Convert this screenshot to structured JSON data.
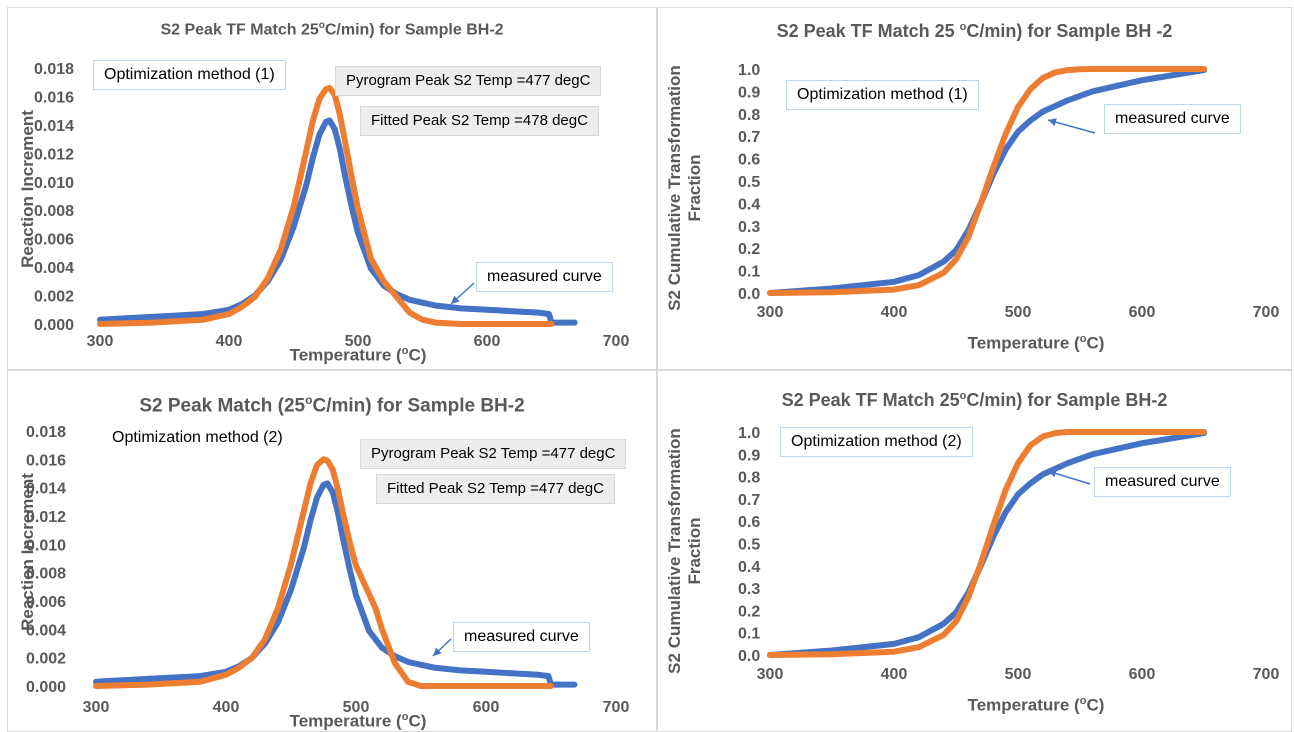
{
  "colors": {
    "measured": "#4472c4",
    "fitted": "#ed7d31",
    "axis_text": "#595959",
    "gridline": "#d9d9d9",
    "callout_border": "#bdd7ee",
    "label_fill": "#ededed"
  },
  "panels": [
    {
      "title_pre": "S2 Peak TF Match 25",
      "title_sup": "o",
      "title_post": "C/min) for Sample BH-2",
      "xlabel_pre": "Temperature (",
      "xlabel_sup": "o",
      "xlabel_post": "C)",
      "ylabel_line1": "Reaction Increment",
      "method": "Optimization method (1)",
      "pyro": "Pyrogram Peak S2 Temp =477 degC",
      "fitted": "Fitted Peak S2 Temp =478 degC",
      "measured_label": "measured curve"
    },
    {
      "title_pre": "S2 Peak TF Match 25 ",
      "title_sup": "o",
      "title_post": "C/min) for Sample BH -2",
      "xlabel_pre": "Temperature (",
      "xlabel_sup": "o",
      "xlabel_post": "C)",
      "ylabel_line1": "S2 Cumulative Transformation",
      "ylabel_line2": "Fraction",
      "method": "Optimization method (1)",
      "measured_label": "measured curve"
    },
    {
      "title_pre": "S2 Peak Match (25",
      "title_sup": "o",
      "title_post": "C/min) for Sample BH-2",
      "xlabel_pre": "Temperature (",
      "xlabel_sup": "o",
      "xlabel_post": "C)",
      "ylabel_line1": "Reaction Increment",
      "method": "Optimization method (2)",
      "pyro": "Pyrogram Peak S2 Temp =477 degC",
      "fitted": "Fitted Peak S2 Temp =477 degC",
      "measured_label": "measured curve"
    },
    {
      "title_pre": "S2 Peak TF Match 25",
      "title_sup": "o",
      "title_post": "C/min) for Sample BH-2",
      "xlabel_pre": "Temperature (",
      "xlabel_sup": "o",
      "xlabel_post": "C)",
      "ylabel_line1": "S2 Cumulative Transformation",
      "ylabel_line2": "Fraction",
      "method": "Optimization method (2)",
      "measured_label": "measured curve"
    }
  ],
  "chart_data": [
    {
      "type": "line",
      "xlim": [
        300,
        700
      ],
      "ylim": [
        0,
        0.018
      ],
      "xticks": [
        "300",
        "400",
        "500",
        "600",
        "700"
      ],
      "yticks": [
        "0.000",
        "0.002",
        "0.004",
        "0.006",
        "0.008",
        "0.010",
        "0.012",
        "0.014",
        "0.016",
        "0.018"
      ],
      "grid": false,
      "series": [
        {
          "role": "measured",
          "x": [
            300,
            320,
            340,
            360,
            380,
            400,
            410,
            420,
            430,
            440,
            450,
            460,
            465,
            470,
            475,
            478,
            482,
            486,
            490,
            495,
            500,
            510,
            520,
            530,
            540,
            550,
            560,
            580,
            600,
            620,
            640,
            648,
            650,
            660,
            668
          ],
          "y": [
            0.0003,
            0.0004,
            0.0005,
            0.0006,
            0.0007,
            0.001,
            0.0014,
            0.002,
            0.003,
            0.0045,
            0.0068,
            0.0098,
            0.0117,
            0.0133,
            0.0142,
            0.0143,
            0.0137,
            0.0123,
            0.0104,
            0.0083,
            0.0064,
            0.0039,
            0.0027,
            0.0021,
            0.0017,
            0.0015,
            0.0013,
            0.0011,
            0.001,
            0.0009,
            0.0008,
            0.0007,
            0.0001,
            0.0001,
            0.0001
          ]
        },
        {
          "role": "fitted",
          "x": [
            300,
            340,
            380,
            400,
            410,
            420,
            430,
            440,
            450,
            460,
            465,
            470,
            475,
            478,
            482,
            486,
            490,
            495,
            500,
            510,
            520,
            530,
            540,
            550,
            560,
            580,
            600,
            620,
            650
          ],
          "y": [
            0.0,
            0.0001,
            0.0003,
            0.0007,
            0.0012,
            0.0019,
            0.0032,
            0.0052,
            0.0082,
            0.0122,
            0.0143,
            0.0158,
            0.0165,
            0.0166,
            0.0161,
            0.0147,
            0.0128,
            0.0104,
            0.0081,
            0.0046,
            0.003,
            0.0019,
            0.0008,
            0.0003,
            0.0001,
            0.0,
            0.0,
            0.0,
            0.0
          ]
        }
      ]
    },
    {
      "type": "line",
      "xlim": [
        300,
        700
      ],
      "ylim": [
        0,
        1.0
      ],
      "xticks": [
        "300",
        "400",
        "500",
        "600",
        "700"
      ],
      "yticks": [
        "0.0",
        "0.1",
        "0.2",
        "0.3",
        "0.4",
        "0.5",
        "0.6",
        "0.7",
        "0.8",
        "0.9",
        "1.0"
      ],
      "grid": false,
      "series": [
        {
          "role": "measured",
          "x": [
            300,
            350,
            400,
            420,
            440,
            450,
            460,
            470,
            480,
            490,
            500,
            510,
            520,
            540,
            560,
            600,
            650
          ],
          "y": [
            0.0,
            0.02,
            0.05,
            0.08,
            0.14,
            0.19,
            0.28,
            0.4,
            0.53,
            0.64,
            0.72,
            0.77,
            0.81,
            0.86,
            0.9,
            0.95,
            0.995
          ]
        },
        {
          "role": "fitted",
          "x": [
            300,
            350,
            400,
            420,
            440,
            450,
            460,
            470,
            480,
            490,
            500,
            510,
            520,
            530,
            540,
            550,
            560,
            580,
            600,
            650
          ],
          "y": [
            0.0,
            0.003,
            0.015,
            0.035,
            0.09,
            0.15,
            0.25,
            0.4,
            0.56,
            0.71,
            0.83,
            0.91,
            0.96,
            0.985,
            0.995,
            0.999,
            1.0,
            1.0,
            1.0,
            1.0
          ]
        }
      ]
    },
    {
      "type": "line",
      "xlim": [
        300,
        700
      ],
      "ylim": [
        0,
        0.018
      ],
      "xticks": [
        "300",
        "400",
        "500",
        "600",
        "700"
      ],
      "yticks": [
        "0.000",
        "0.002",
        "0.004",
        "0.006",
        "0.008",
        "0.010",
        "0.012",
        "0.014",
        "0.016",
        "0.018"
      ],
      "grid": false,
      "series": [
        {
          "role": "measured",
          "x": [
            300,
            320,
            340,
            360,
            380,
            400,
            410,
            420,
            430,
            440,
            450,
            460,
            465,
            470,
            475,
            478,
            482,
            486,
            490,
            495,
            500,
            510,
            520,
            530,
            540,
            550,
            560,
            580,
            600,
            620,
            640,
            648,
            650,
            660,
            668
          ],
          "y": [
            0.0003,
            0.0004,
            0.0005,
            0.0006,
            0.0007,
            0.001,
            0.0014,
            0.002,
            0.003,
            0.0045,
            0.0068,
            0.0098,
            0.0117,
            0.0133,
            0.0142,
            0.0143,
            0.0137,
            0.0123,
            0.0104,
            0.0083,
            0.0064,
            0.0039,
            0.0027,
            0.0021,
            0.0017,
            0.0015,
            0.0013,
            0.0011,
            0.001,
            0.0009,
            0.0008,
            0.0007,
            0.0001,
            0.0001,
            0.0001
          ]
        },
        {
          "role": "fitted",
          "x": [
            300,
            340,
            380,
            400,
            410,
            420,
            430,
            440,
            450,
            460,
            465,
            470,
            475,
            478,
            482,
            486,
            490,
            495,
            500,
            510,
            515,
            520,
            530,
            540,
            550,
            560,
            600,
            650
          ],
          "y": [
            0.0,
            0.0001,
            0.0003,
            0.0008,
            0.0013,
            0.002,
            0.0033,
            0.0055,
            0.0086,
            0.0124,
            0.0143,
            0.0156,
            0.016,
            0.0159,
            0.0153,
            0.0139,
            0.0122,
            0.0102,
            0.0085,
            0.0065,
            0.0055,
            0.004,
            0.0016,
            0.0003,
            0.0,
            0.0,
            0.0,
            0.0
          ]
        }
      ]
    },
    {
      "type": "line",
      "xlim": [
        300,
        700
      ],
      "ylim": [
        0,
        1.0
      ],
      "xticks": [
        "300",
        "400",
        "500",
        "600",
        "700"
      ],
      "yticks": [
        "0.0",
        "0.1",
        "0.2",
        "0.3",
        "0.4",
        "0.5",
        "0.6",
        "0.7",
        "0.8",
        "0.9",
        "1.0"
      ],
      "grid": false,
      "series": [
        {
          "role": "measured",
          "x": [
            300,
            350,
            400,
            420,
            440,
            450,
            460,
            470,
            480,
            490,
            500,
            510,
            520,
            540,
            560,
            600,
            650
          ],
          "y": [
            0.0,
            0.02,
            0.05,
            0.08,
            0.14,
            0.19,
            0.28,
            0.4,
            0.53,
            0.64,
            0.72,
            0.77,
            0.81,
            0.86,
            0.9,
            0.95,
            0.995
          ]
        },
        {
          "role": "fitted",
          "x": [
            300,
            350,
            400,
            420,
            440,
            450,
            460,
            470,
            480,
            490,
            500,
            510,
            520,
            530,
            540,
            550,
            600,
            650
          ],
          "y": [
            0.0,
            0.003,
            0.015,
            0.035,
            0.09,
            0.15,
            0.26,
            0.41,
            0.58,
            0.74,
            0.86,
            0.94,
            0.98,
            0.995,
            1.0,
            1.0,
            1.0,
            1.0
          ]
        }
      ]
    }
  ]
}
